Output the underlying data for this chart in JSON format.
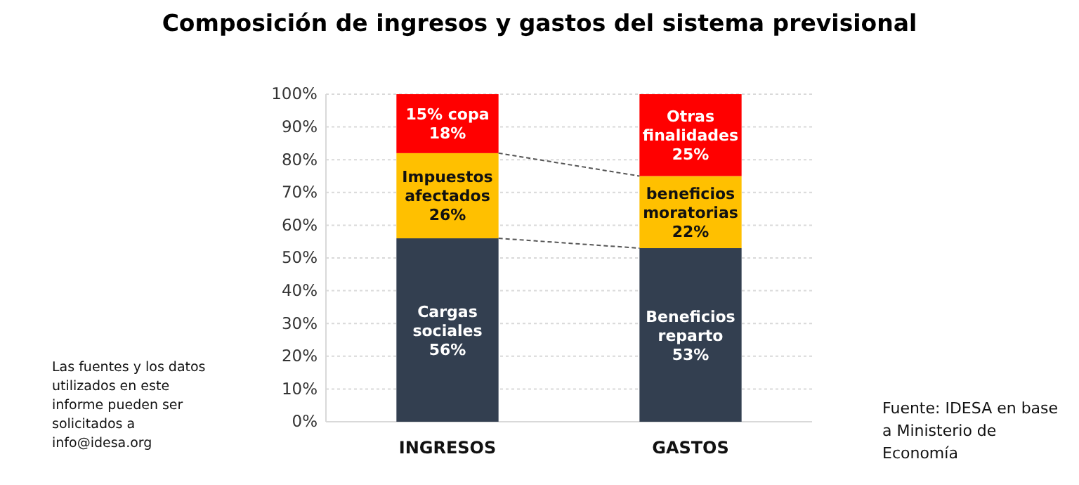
{
  "chart_data": {
    "type": "bar",
    "title": "Composición de ingresos y gastos del sistema previsional",
    "categories": [
      "INGRESOS",
      "GASTOS"
    ],
    "stacked": true,
    "series": [
      {
        "color": "#333f50",
        "values": [
          56,
          53
        ],
        "value_labels": [
          "Cargas sociales 56%",
          "Beneficios reparto 53%"
        ]
      },
      {
        "color": "#ffc000",
        "values": [
          26,
          22
        ],
        "value_labels": [
          "Impuestos afectados 26%",
          "beneficios moratorias 22%"
        ]
      },
      {
        "color": "#ff0000",
        "values": [
          18,
          25
        ],
        "value_labels": [
          "15% copa 18%",
          "Otras finalidades 25%"
        ]
      }
    ],
    "ylim": [
      0,
      100
    ],
    "yticks": [
      {
        "value": 0,
        "label": "0%"
      },
      {
        "value": 10,
        "label": "10%"
      },
      {
        "value": 20,
        "label": "20%"
      },
      {
        "value": 30,
        "label": "30%"
      },
      {
        "value": 40,
        "label": "40%"
      },
      {
        "value": 50,
        "label": "50%"
      },
      {
        "value": 60,
        "label": "60%"
      },
      {
        "value": 70,
        "label": "70%"
      },
      {
        "value": 80,
        "label": "80%"
      },
      {
        "value": 90,
        "label": "90%"
      },
      {
        "value": 100,
        "label": "100%"
      }
    ],
    "grid": "y",
    "annotations": [
      "Las fuentes y los datos utilizados en este informe pueden ser solicitados a info@idesa.org",
      "Fuente: IDESA en base a Ministerio de Economía"
    ]
  }
}
